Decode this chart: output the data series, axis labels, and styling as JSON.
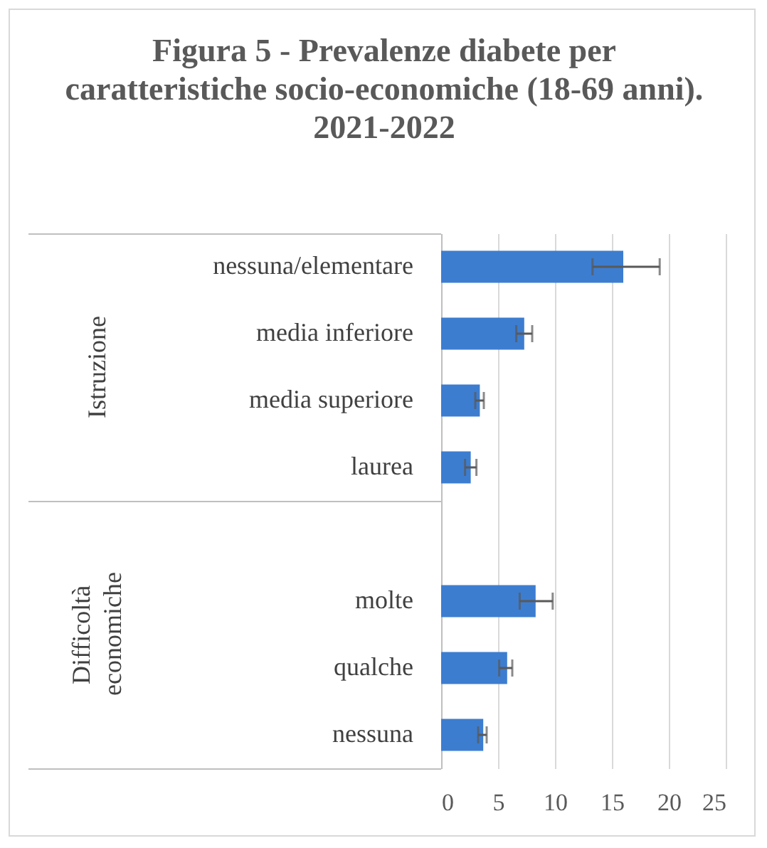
{
  "chart_data": {
    "type": "bar",
    "orientation": "horizontal",
    "title": "Figura 5 - Prevalenze diabete per caratteristiche socio-economiche (18-69 anni).  2021-2022",
    "categories": [
      "nessuna/elementare",
      "media inferiore",
      "media superiore",
      "laurea",
      null,
      "molte",
      "qualche",
      "nessuna"
    ],
    "values": [
      16.0,
      7.3,
      3.4,
      2.6,
      null,
      8.3,
      5.8,
      3.7
    ],
    "errors": [
      [
        13.3,
        19.2
      ],
      [
        6.6,
        8.0
      ],
      [
        3.0,
        3.75
      ],
      [
        2.1,
        3.1
      ],
      null,
      [
        6.9,
        9.8
      ],
      [
        5.1,
        6.25
      ],
      [
        3.25,
        4.0
      ]
    ],
    "color": "#3c7dd0",
    "xlim": [
      0,
      25
    ],
    "xticks": [
      0,
      5,
      10,
      15,
      20,
      25
    ],
    "grid": "x",
    "annotations": [
      "Istruzione",
      "Difficoltà economiche"
    ]
  }
}
